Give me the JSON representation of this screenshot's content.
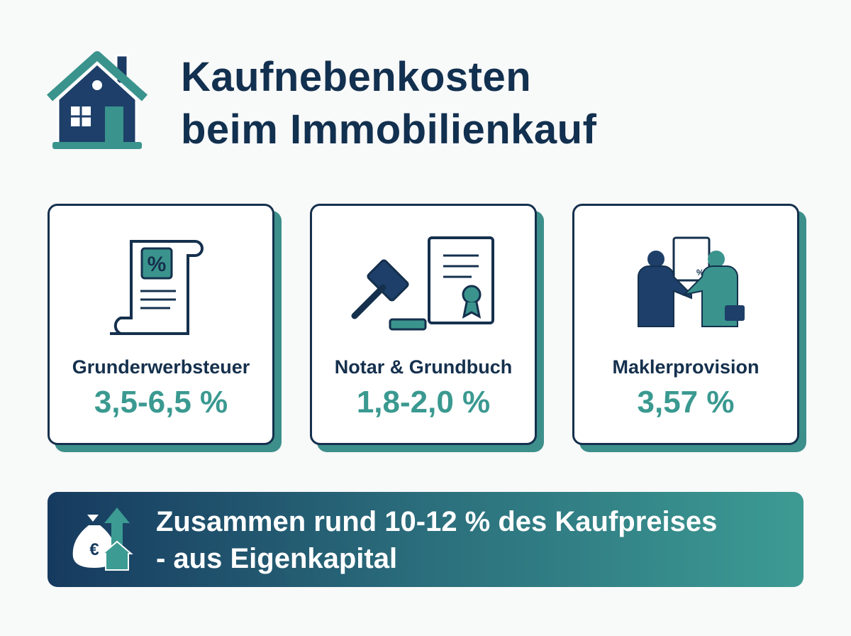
{
  "header": {
    "title_lines": [
      "Kaufnebenkosten",
      "beim Immobilienkauf"
    ]
  },
  "cards": [
    {
      "label": "Grunderwerbsteuer",
      "value": "3,5-6,5 %"
    },
    {
      "label": "Notar & Grundbuch",
      "value": "1,8-2,0 %"
    },
    {
      "label": "Maklerprovision",
      "value": "3,57 %"
    }
  ],
  "footer": {
    "lines": [
      "Zusammen rund 10-12 % des Kaufpreises",
      "- aus Eigenkapital"
    ]
  }
}
